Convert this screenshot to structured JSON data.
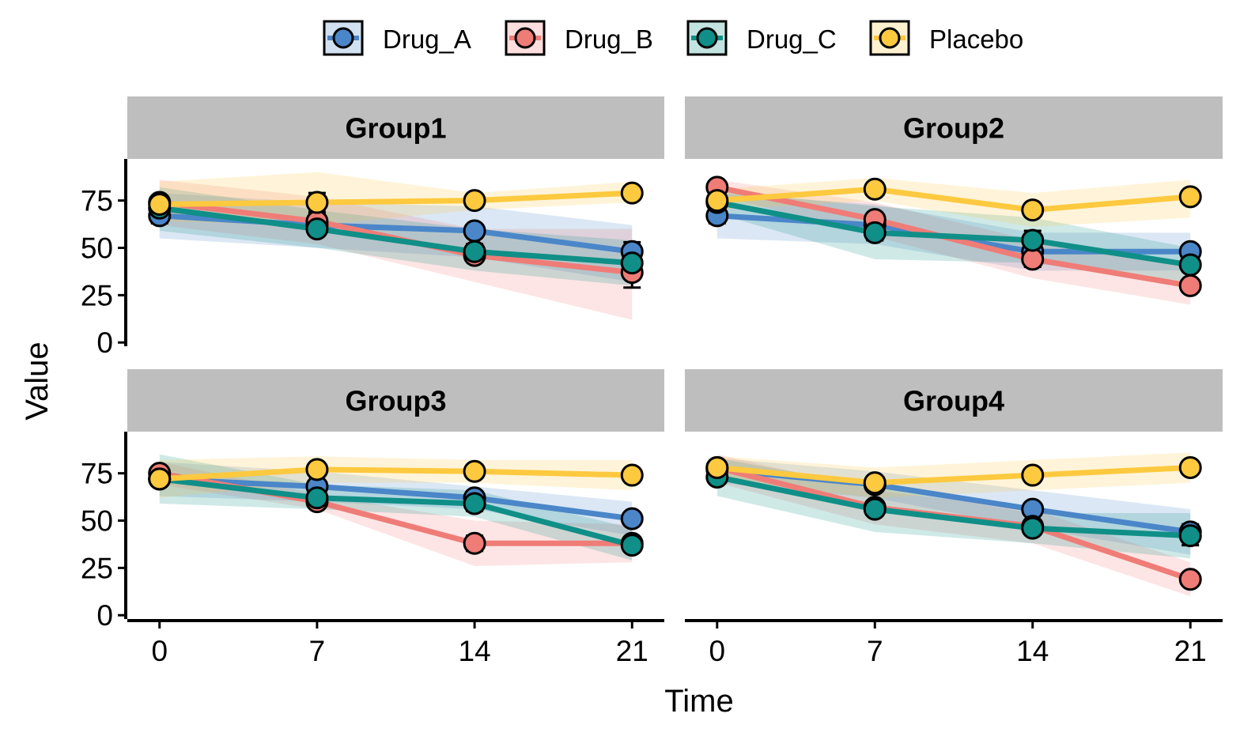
{
  "chart_data": {
    "type": "line",
    "xlabel": "Time",
    "ylabel": "Value",
    "x": [
      0,
      7,
      14,
      21
    ],
    "x_ticks": [
      "0",
      "7",
      "14",
      "21"
    ],
    "y_ticks": [
      "0",
      "25",
      "50",
      "75"
    ],
    "ylim": [
      -2,
      97
    ],
    "grid": false,
    "legend_position": "top",
    "series_names": [
      "Drug_A",
      "Drug_B",
      "Drug_C",
      "Placebo"
    ],
    "colors": {
      "Drug_A": "#4a86c8",
      "Drug_B": "#ef7c77",
      "Drug_C": "#0f8f87",
      "Placebo": "#fdc93f"
    },
    "panels": [
      {
        "title": "Group1",
        "series": [
          {
            "name": "Drug_A",
            "values": [
              67,
              62,
              59,
              48
            ],
            "err": [
              4,
              3,
              3,
              5
            ],
            "band_low": [
              55,
              50,
              45,
              32
            ],
            "band_high": [
              79,
              74,
              72,
              62
            ]
          },
          {
            "name": "Drug_B",
            "values": [
              74,
              64,
              46,
              37
            ],
            "err": [
              3,
              4,
              3,
              8
            ],
            "band_low": [
              62,
              52,
              32,
              12
            ],
            "band_high": [
              86,
              77,
              60,
              60
            ]
          },
          {
            "name": "Drug_C",
            "values": [
              71,
              60,
              48,
              42
            ],
            "err": [
              3,
              3,
              4,
              4
            ],
            "band_low": [
              59,
              50,
              38,
              30
            ],
            "band_high": [
              82,
              70,
              60,
              54
            ]
          },
          {
            "name": "Placebo",
            "values": [
              73,
              74,
              75,
              79
            ],
            "err": [
              3,
              5,
              2,
              2
            ],
            "band_low": [
              64,
              62,
              70,
              74
            ],
            "band_high": [
              85,
              90,
              79,
              85
            ]
          }
        ]
      },
      {
        "title": "Group2",
        "series": [
          {
            "name": "Drug_A",
            "values": [
              67,
              62,
              48,
              48
            ],
            "err": [
              4,
              3,
              3,
              3
            ],
            "band_low": [
              55,
              52,
              38,
              38
            ],
            "band_high": [
              79,
              73,
              58,
              58
            ]
          },
          {
            "name": "Drug_B",
            "values": [
              82,
              65,
              44,
              30
            ],
            "err": [
              2,
              3,
              4,
              3
            ],
            "band_low": [
              78,
              56,
              34,
              20
            ],
            "band_high": [
              86,
              74,
              54,
              40
            ]
          },
          {
            "name": "Drug_C",
            "values": [
              74,
              58,
              54,
              41
            ],
            "err": [
              3,
              4,
              5,
              3
            ],
            "band_low": [
              68,
              44,
              42,
              32
            ],
            "band_high": [
              80,
              72,
              66,
              50
            ]
          },
          {
            "name": "Placebo",
            "values": [
              75,
              81,
              70,
              77
            ],
            "err": [
              2,
              2,
              3,
              3
            ],
            "band_low": [
              70,
              75,
              61,
              66
            ],
            "band_high": [
              81,
              87,
              79,
              86
            ]
          }
        ]
      },
      {
        "title": "Group3",
        "series": [
          {
            "name": "Drug_A",
            "values": [
              72,
              68,
              62,
              51
            ],
            "err": [
              3,
              3,
              3,
              3
            ],
            "band_low": [
              63,
              60,
              56,
              42
            ],
            "band_high": [
              81,
              76,
              68,
              60
            ]
          },
          {
            "name": "Drug_B",
            "values": [
              75,
              60,
              38,
              38
            ],
            "err": [
              3,
              3,
              4,
              3
            ],
            "band_low": [
              69,
              56,
              26,
              28
            ],
            "band_high": [
              81,
              64,
              50,
              48
            ]
          },
          {
            "name": "Drug_C",
            "values": [
              72,
              62,
              59,
              37
            ],
            "err": [
              3,
              3,
              4,
              3
            ],
            "band_low": [
              59,
              56,
              52,
              29
            ],
            "band_high": [
              85,
              69,
              66,
              46
            ]
          },
          {
            "name": "Placebo",
            "values": [
              72,
              77,
              76,
              74
            ],
            "err": [
              3,
              3,
              2,
              2
            ],
            "band_low": [
              62,
              70,
              70,
              66
            ],
            "band_high": [
              82,
              84,
              82,
              82
            ]
          }
        ]
      },
      {
        "title": "Group4",
        "series": [
          {
            "name": "Drug_A",
            "values": [
              77,
              69,
              56,
              44
            ],
            "err": [
              2,
              2,
              3,
              4
            ],
            "band_low": [
              70,
              62,
              46,
              32
            ],
            "band_high": [
              83,
              76,
              66,
              56
            ]
          },
          {
            "name": "Drug_B",
            "values": [
              78,
              57,
              47,
              19
            ],
            "err": [
              3,
              3,
              3,
              2
            ],
            "band_low": [
              70,
              48,
              38,
              10
            ],
            "band_high": [
              85,
              66,
              56,
              28
            ]
          },
          {
            "name": "Drug_C",
            "values": [
              73,
              56,
              46,
              42
            ],
            "err": [
              3,
              3,
              3,
              5
            ],
            "band_low": [
              63,
              44,
              38,
              30
            ],
            "band_high": [
              83,
              68,
              54,
              54
            ]
          },
          {
            "name": "Placebo",
            "values": [
              78,
              70,
              74,
              78
            ],
            "err": [
              2,
              3,
              3,
              2
            ],
            "band_low": [
              72,
              62,
              66,
              70
            ],
            "band_high": [
              84,
              78,
              82,
              86
            ]
          }
        ]
      }
    ]
  }
}
